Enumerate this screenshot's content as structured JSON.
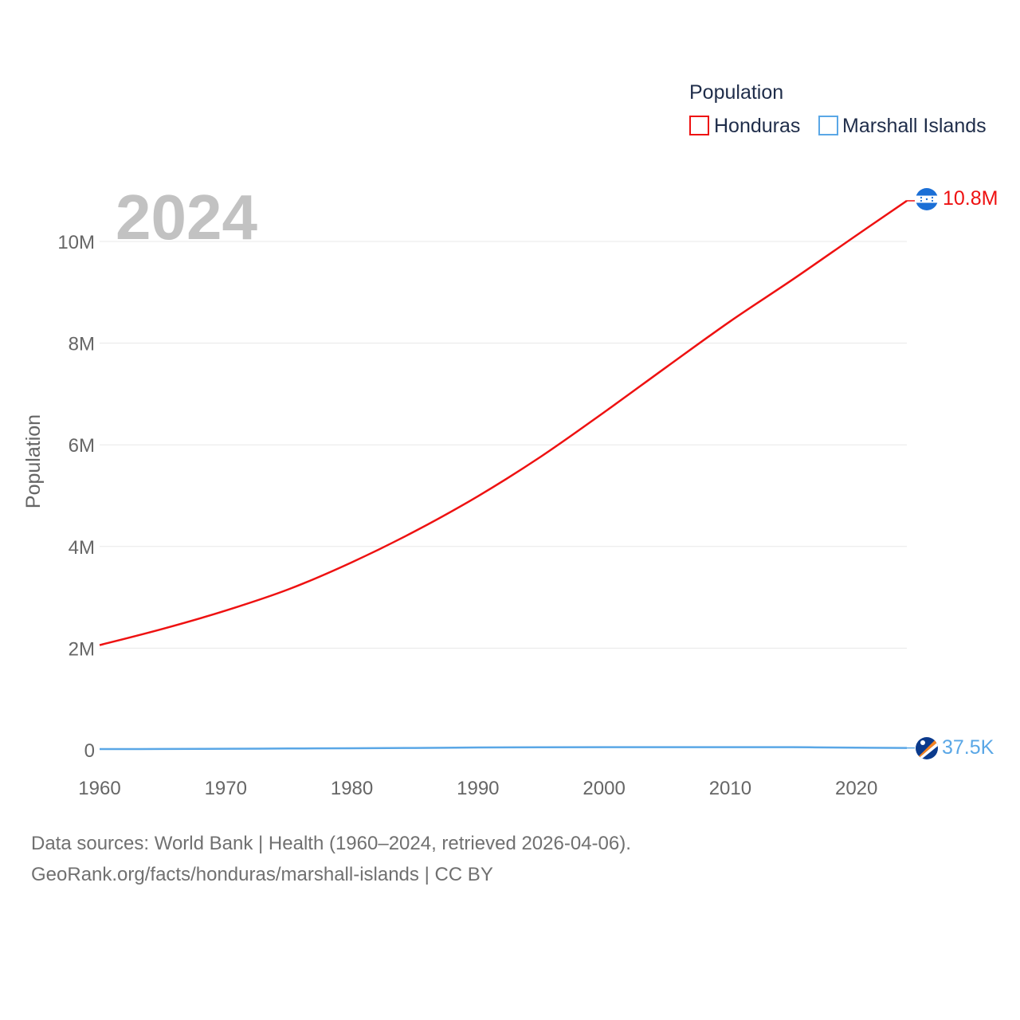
{
  "chart_data": {
    "type": "line",
    "title": "Population",
    "ylabel": "Population",
    "xlabel": "",
    "xlim": [
      1960,
      2024
    ],
    "ylim": [
      0,
      10800000
    ],
    "x_ticks": [
      1960,
      1970,
      1980,
      1990,
      2000,
      2010,
      2020
    ],
    "y_ticks": [
      {
        "value": 0,
        "label": "0"
      },
      {
        "value": 2000000,
        "label": "2M"
      },
      {
        "value": 4000000,
        "label": "4M"
      },
      {
        "value": 6000000,
        "label": "6M"
      },
      {
        "value": 8000000,
        "label": "8M"
      },
      {
        "value": 10000000,
        "label": "10M"
      }
    ],
    "grid": true,
    "legend_position": "top-right",
    "current_year_label": "2024",
    "x": [
      1960,
      1965,
      1970,
      1975,
      1980,
      1985,
      1990,
      1995,
      2000,
      2005,
      2010,
      2015,
      2020,
      2024
    ],
    "series": [
      {
        "name": "Honduras",
        "color": "#ee1111",
        "values": [
          2060000,
          2380000,
          2740000,
          3160000,
          3690000,
          4300000,
          4990000,
          5770000,
          6640000,
          7540000,
          8430000,
          9260000,
          10120000,
          10800000
        ],
        "end_label": "10.8M",
        "flag_icon": "honduras-flag-icon"
      },
      {
        "name": "Marshall Islands",
        "color": "#5aa7e6",
        "values": [
          14700,
          17700,
          21600,
          26800,
          31000,
          37600,
          46800,
          51000,
          52200,
          52000,
          53400,
          52200,
          43400,
          37500
        ],
        "end_label": "37.5K",
        "flag_icon": "marshall-islands-flag-icon"
      }
    ]
  },
  "footer": {
    "line1": "Data sources: World Bank | Health (1960–2024, retrieved 2026-04-06).",
    "line2": "GeoRank.org/facts/honduras/marshall-islands | CC BY"
  }
}
